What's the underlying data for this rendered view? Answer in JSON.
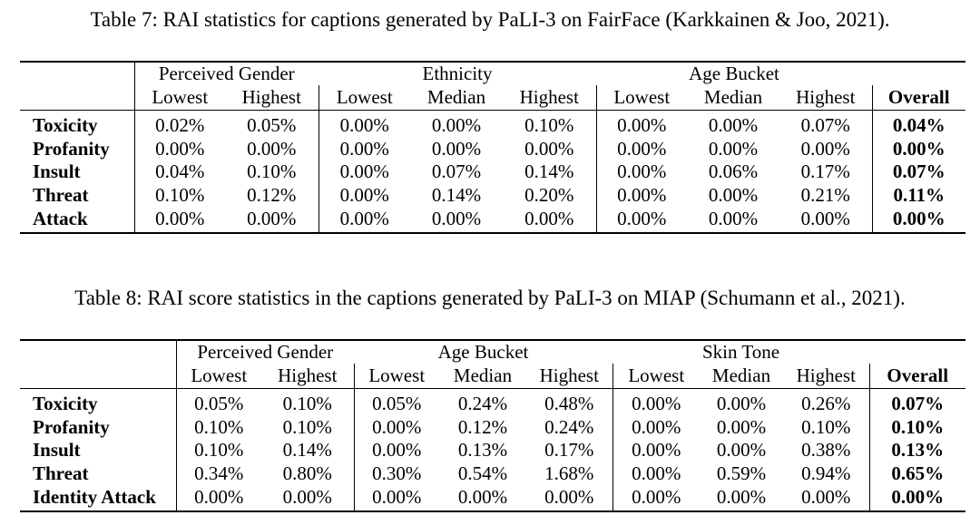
{
  "tables": [
    {
      "caption": "Table 7: RAI statistics for captions generated by PaLI-3 on FairFace (Karkkainen & Joo, 2021).",
      "groups": [
        "Perceived Gender",
        "Ethnicity",
        "Age Bucket"
      ],
      "subheaders": [
        "Lowest",
        "Highest",
        "Lowest",
        "Median",
        "Highest",
        "Lowest",
        "Median",
        "Highest",
        "Overall"
      ],
      "rows": [
        {
          "label": "Toxicity",
          "values": [
            "0.02%",
            "0.05%",
            "0.00%",
            "0.00%",
            "0.10%",
            "0.00%",
            "0.00%",
            "0.07%",
            "0.04%"
          ]
        },
        {
          "label": "Profanity",
          "values": [
            "0.00%",
            "0.00%",
            "0.00%",
            "0.00%",
            "0.00%",
            "0.00%",
            "0.00%",
            "0.00%",
            "0.00%"
          ]
        },
        {
          "label": "Insult",
          "values": [
            "0.04%",
            "0.10%",
            "0.00%",
            "0.07%",
            "0.14%",
            "0.00%",
            "0.06%",
            "0.17%",
            "0.07%"
          ]
        },
        {
          "label": "Threat",
          "values": [
            "0.10%",
            "0.12%",
            "0.00%",
            "0.14%",
            "0.20%",
            "0.00%",
            "0.00%",
            "0.21%",
            "0.11%"
          ]
        },
        {
          "label": "Attack",
          "values": [
            "0.00%",
            "0.00%",
            "0.00%",
            "0.00%",
            "0.00%",
            "0.00%",
            "0.00%",
            "0.00%",
            "0.00%"
          ]
        }
      ]
    },
    {
      "caption": "Table 8: RAI score statistics in the captions generated by PaLI-3 on MIAP (Schumann et al., 2021).",
      "groups": [
        "Perceived Gender",
        "Age Bucket",
        "Skin Tone"
      ],
      "subheaders": [
        "Lowest",
        "Highest",
        "Lowest",
        "Median",
        "Highest",
        "Lowest",
        "Median",
        "Highest",
        "Overall"
      ],
      "rows": [
        {
          "label": "Toxicity",
          "values": [
            "0.05%",
            "0.10%",
            "0.05%",
            "0.24%",
            "0.48%",
            "0.00%",
            "0.00%",
            "0.26%",
            "0.07%"
          ]
        },
        {
          "label": "Profanity",
          "values": [
            "0.10%",
            "0.10%",
            "0.00%",
            "0.12%",
            "0.24%",
            "0.00%",
            "0.00%",
            "0.10%",
            "0.10%"
          ]
        },
        {
          "label": "Insult",
          "values": [
            "0.10%",
            "0.14%",
            "0.00%",
            "0.13%",
            "0.17%",
            "0.00%",
            "0.00%",
            "0.38%",
            "0.13%"
          ]
        },
        {
          "label": "Threat",
          "values": [
            "0.34%",
            "0.80%",
            "0.30%",
            "0.54%",
            "1.68%",
            "0.00%",
            "0.59%",
            "0.94%",
            "0.65%"
          ]
        },
        {
          "label": "Identity Attack",
          "values": [
            "0.00%",
            "0.00%",
            "0.00%",
            "0.00%",
            "0.00%",
            "0.00%",
            "0.00%",
            "0.00%",
            "0.00%"
          ]
        }
      ]
    }
  ]
}
